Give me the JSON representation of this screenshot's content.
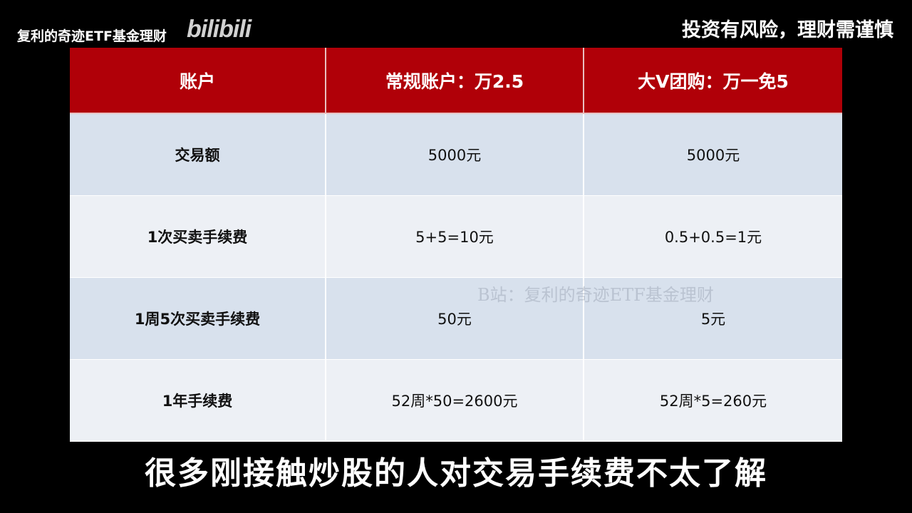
{
  "overlay": {
    "channel": "复利的奇迹ETF基金理财",
    "logo": "bilibili",
    "risk_notice": "投资有风险，理财需谨慎",
    "watermark": "B站：复利的奇迹ETF基金理财"
  },
  "table": {
    "headers": [
      "账户",
      "常规账户：万2.5",
      "大V团购：万一免5"
    ],
    "rows": [
      [
        "交易额",
        "5000元",
        "5000元"
      ],
      [
        "1次买卖手续费",
        "5+5=10元",
        "0.5+0.5=1元"
      ],
      [
        "1周5次买卖手续费",
        "50元",
        "5元"
      ],
      [
        "1年手续费",
        "52周*50=2600元",
        "52周*5=260元"
      ]
    ],
    "colors": {
      "header": "#b00008",
      "row_a": "#d8e1ed",
      "row_b": "#edf0f5"
    }
  },
  "subtitle": "很多刚接触炒股的人对交易手续费不太了解"
}
